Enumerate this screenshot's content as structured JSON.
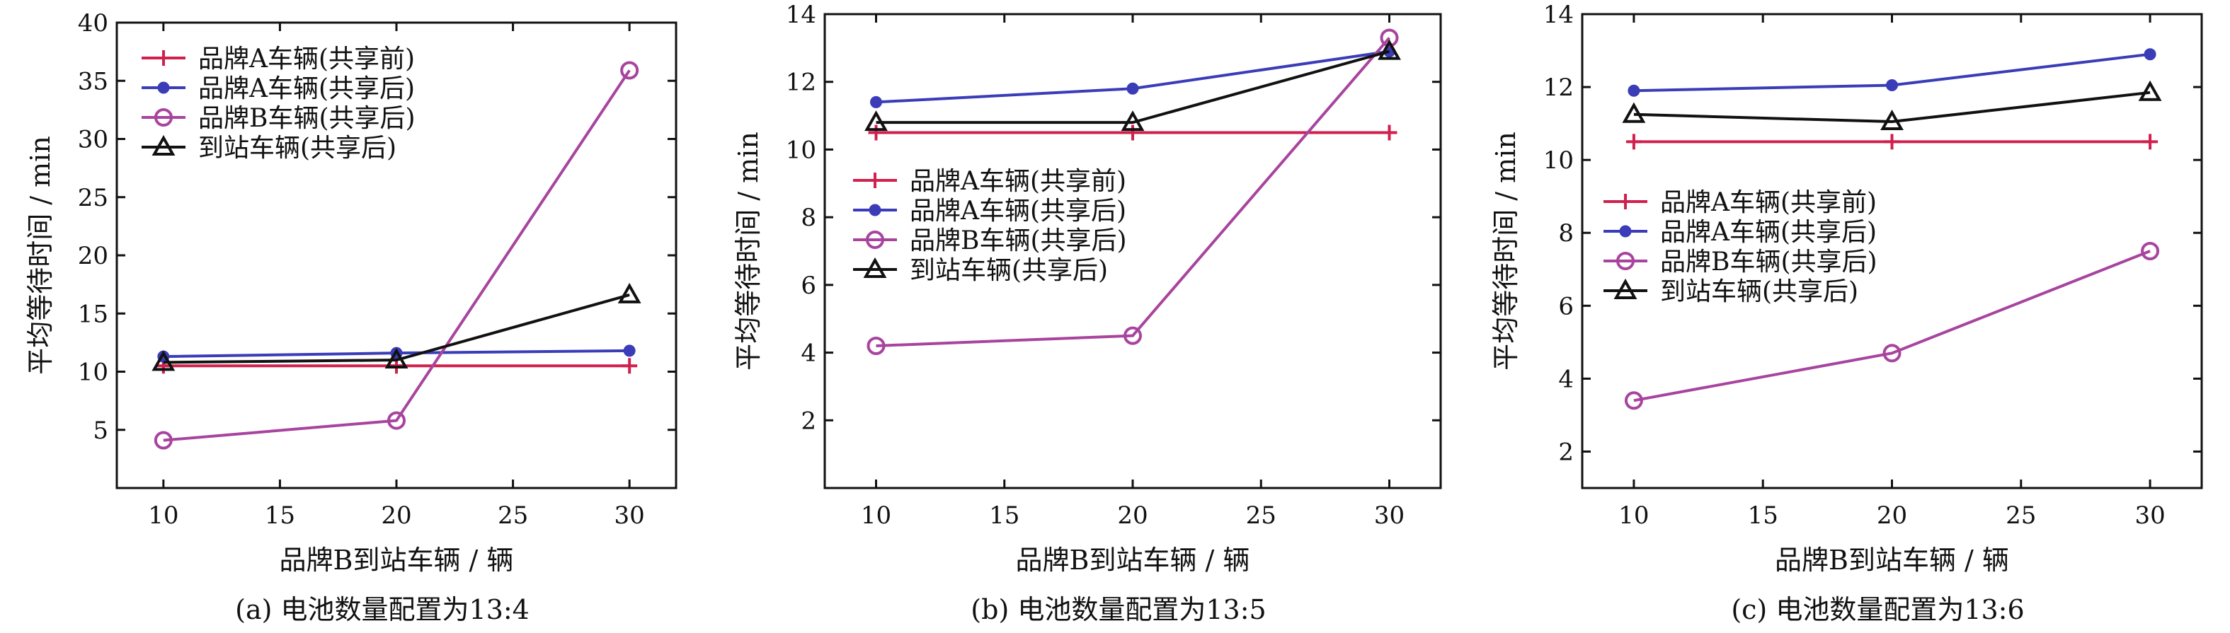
{
  "colors": {
    "brandA_before": "#d0204d",
    "brandA_after": "#3a3cb8",
    "brandB_after": "#a8449e",
    "station_after": "#111111"
  },
  "legend_labels": [
    "品牌A车辆(共享前)",
    "品牌A车辆(共享后)",
    "品牌B车辆(共享后)",
    "到站车辆(共享后)"
  ],
  "chart_data": [
    {
      "type": "line",
      "caption": "(a) 电池数量配置为13:4",
      "xlabel": "品牌B到站车辆 / 辆",
      "ylabel": "平均等待时间 / min",
      "x": [
        10,
        20,
        30
      ],
      "xlim": [
        8,
        32
      ],
      "ylim": [
        0,
        40
      ],
      "xticks": [
        10,
        15,
        20,
        25,
        30
      ],
      "yticks": [
        5,
        10,
        15,
        20,
        25,
        30,
        35,
        40
      ],
      "legend_position": "top-left",
      "series": [
        {
          "name": "品牌A车辆(共享前)",
          "marker": "plus",
          "values": [
            10.5,
            10.5,
            10.5
          ]
        },
        {
          "name": "品牌A车辆(共享后)",
          "marker": "dot",
          "values": [
            11.3,
            11.6,
            11.8
          ]
        },
        {
          "name": "品牌B车辆(共享后)",
          "marker": "circle",
          "values": [
            4.1,
            5.8,
            35.9
          ]
        },
        {
          "name": "到站车辆(共享后)",
          "marker": "triangle",
          "values": [
            10.8,
            11.0,
            16.6
          ]
        }
      ]
    },
    {
      "type": "line",
      "caption": "(b) 电池数量配置为13:5",
      "xlabel": "品牌B到站车辆 / 辆",
      "ylabel": "平均等待时间 / min",
      "x": [
        10,
        20,
        30
      ],
      "xlim": [
        8,
        32
      ],
      "ylim": [
        0,
        14
      ],
      "xticks": [
        10,
        15,
        20,
        25,
        30
      ],
      "yticks": [
        2,
        4,
        6,
        8,
        10,
        12,
        14
      ],
      "legend_position": "middle-left",
      "series": [
        {
          "name": "品牌A车辆(共享前)",
          "marker": "plus",
          "values": [
            10.5,
            10.5,
            10.5
          ]
        },
        {
          "name": "品牌A车辆(共享后)",
          "marker": "dot",
          "values": [
            11.4,
            11.8,
            12.9
          ]
        },
        {
          "name": "品牌B车辆(共享后)",
          "marker": "circle",
          "values": [
            4.2,
            4.5,
            13.3
          ]
        },
        {
          "name": "到站车辆(共享后)",
          "marker": "triangle",
          "values": [
            10.8,
            10.8,
            12.9
          ]
        }
      ]
    },
    {
      "type": "line",
      "caption": "(c) 电池数量配置为13:6",
      "xlabel": "品牌B到站车辆 / 辆",
      "ylabel": "平均等待时间 / min",
      "x": [
        10,
        20,
        30
      ],
      "xlim": [
        8,
        32
      ],
      "ylim": [
        1,
        14
      ],
      "xticks": [
        10,
        15,
        20,
        25,
        30
      ],
      "yticks": [
        2,
        4,
        6,
        8,
        10,
        12,
        14
      ],
      "legend_position": "middle-left",
      "series": [
        {
          "name": "品牌A车辆(共享前)",
          "marker": "plus",
          "values": [
            10.5,
            10.5,
            10.5
          ]
        },
        {
          "name": "品牌A车辆(共享后)",
          "marker": "dot",
          "values": [
            11.9,
            12.05,
            12.9
          ]
        },
        {
          "name": "品牌B车辆(共享后)",
          "marker": "circle",
          "values": [
            3.4,
            4.7,
            7.5
          ]
        },
        {
          "name": "到站车辆(共享后)",
          "marker": "triangle",
          "values": [
            11.25,
            11.05,
            11.85
          ]
        }
      ]
    }
  ]
}
